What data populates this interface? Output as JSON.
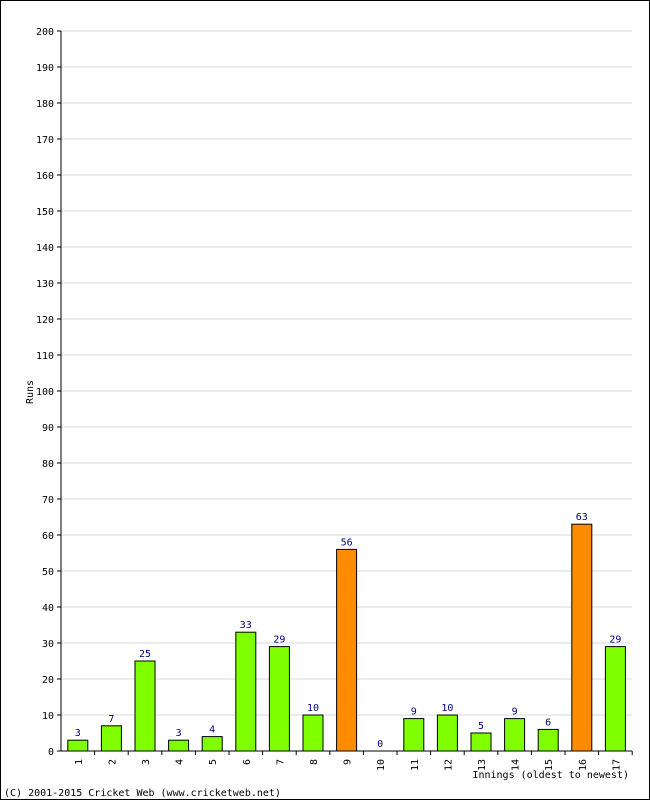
{
  "chart_data": {
    "type": "bar",
    "title": "",
    "xlabel": "Innings (oldest to newest)",
    "ylabel": "Runs",
    "ylim": [
      0,
      200
    ],
    "ytick_step": 10,
    "grid": true,
    "categories": [
      "1",
      "2",
      "3",
      "4",
      "5",
      "6",
      "7",
      "8",
      "9",
      "10",
      "11",
      "12",
      "13",
      "14",
      "15",
      "16",
      "17"
    ],
    "values": [
      3,
      7,
      25,
      3,
      4,
      33,
      29,
      10,
      56,
      0,
      9,
      10,
      5,
      9,
      6,
      63,
      29
    ],
    "bar_colors": [
      "green",
      "green",
      "green",
      "green",
      "green",
      "green",
      "green",
      "green",
      "orange",
      "green",
      "green",
      "green",
      "green",
      "green",
      "green",
      "orange",
      "green"
    ],
    "colors": {
      "green": "#80ff00",
      "orange": "#ff8c00",
      "label": "#000080",
      "grid": "#d8d8d8"
    }
  },
  "footer": {
    "copyright": "(C) 2001-2015 Cricket Web (www.cricketweb.net)"
  }
}
